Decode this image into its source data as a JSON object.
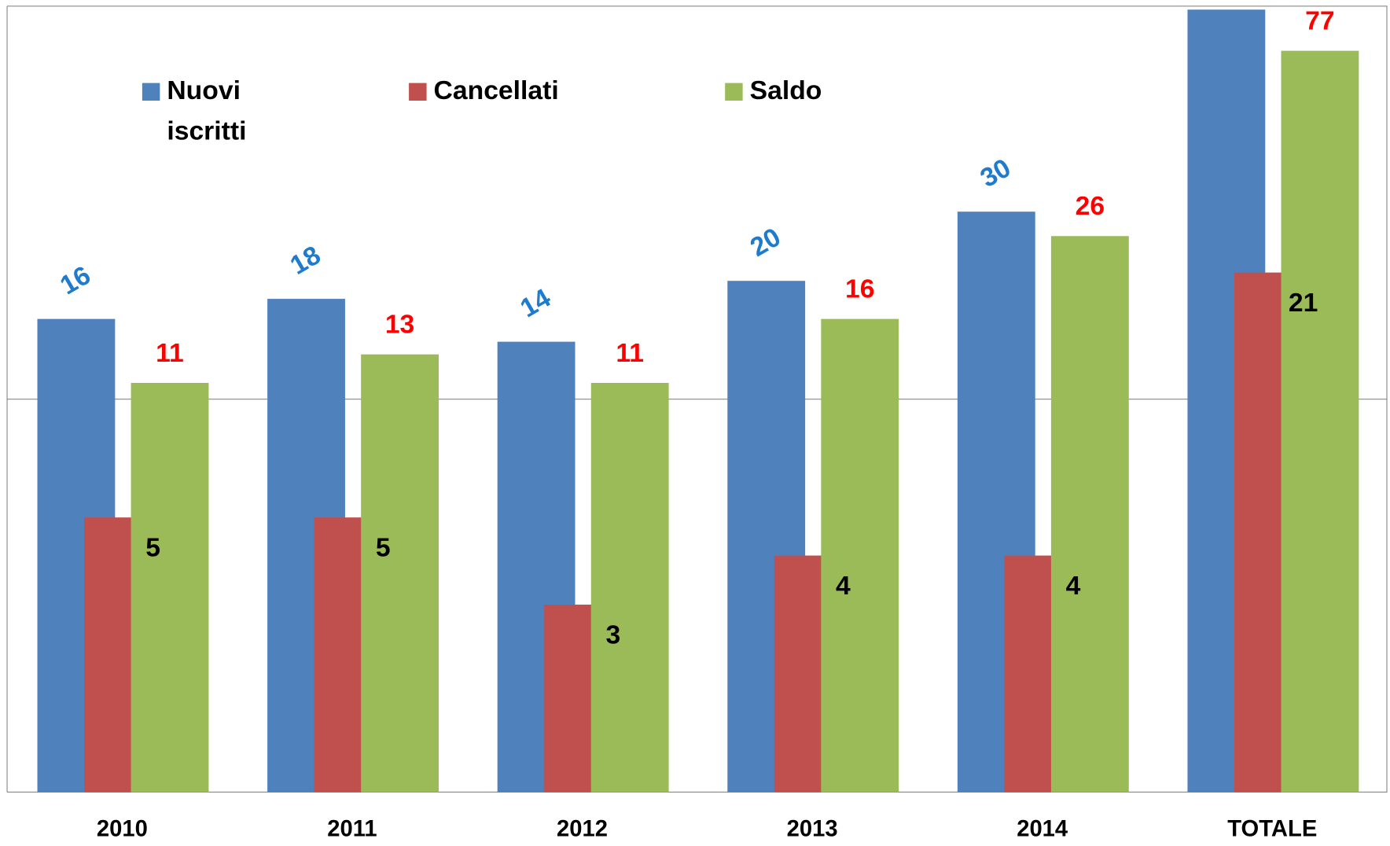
{
  "chart_data": {
    "type": "bar",
    "categories": [
      "2010",
      "2011",
      "2012",
      "2013",
      "2014",
      "TOTALE"
    ],
    "series": [
      {
        "name": "Nuovi iscritti",
        "color": "#4f81bd",
        "label_color": "#1f7bcb",
        "values": [
          16,
          18,
          14,
          20,
          30,
          98
        ],
        "value_labels": [
          "16",
          "18",
          "14",
          "20",
          "30",
          null
        ]
      },
      {
        "name": "Cancellati",
        "color": "#c0504d",
        "label_color": "#000000",
        "values": [
          5,
          5,
          3,
          4,
          4,
          21
        ]
      },
      {
        "name": "Saldo",
        "color": "#9bbb59",
        "label_color": "#ff0000",
        "values": [
          11,
          13,
          11,
          16,
          26,
          77
        ]
      }
    ],
    "log_scale": true,
    "ylim": [
      1,
      100
    ],
    "yticks": [
      1,
      10,
      100
    ],
    "grid": true,
    "legend": "top-left"
  }
}
